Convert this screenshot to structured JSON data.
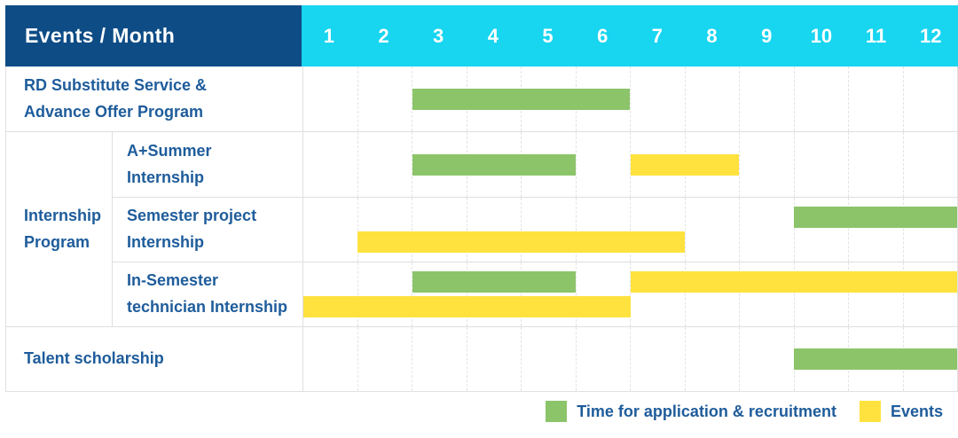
{
  "header": {
    "title": "Events / Month"
  },
  "colors": {
    "navy_header": "#0E4C86",
    "cyan_header": "#18D5F0",
    "label_blue": "#1E5C9B",
    "green": "#8CC46A",
    "yellow": "#FFE23E",
    "grid_line": "#DFDFDF"
  },
  "chart_data": {
    "type": "gantt",
    "title": "Events / Month",
    "x_axis_label": "Month",
    "months": [
      "1",
      "2",
      "3",
      "4",
      "5",
      "6",
      "7",
      "8",
      "9",
      "10",
      "11",
      "12"
    ],
    "x_range": [
      1,
      12
    ],
    "grid": "on",
    "legend_position": "bottom-right",
    "group_label_lines": [
      "Internship",
      "Program"
    ],
    "group_label": "Internship Program",
    "rows": [
      {
        "label": "RD Substitute Service & Advance Offer Program",
        "lines": [
          "RD Substitute Service &",
          "Advance Offer Program"
        ],
        "group": null,
        "bars": [
          {
            "color": "green",
            "meaning": "Time for application & recruitment",
            "start_month": 3,
            "end_month": 6,
            "lane": "center"
          }
        ]
      },
      {
        "label": "A+Summer Internship",
        "lines": [
          "A+Summer",
          "Internship"
        ],
        "group": "Internship Program",
        "bars": [
          {
            "color": "green",
            "meaning": "Time for application & recruitment",
            "start_month": 3,
            "end_month": 5,
            "lane": "center"
          },
          {
            "color": "yellow",
            "meaning": "Events",
            "start_month": 7,
            "end_month": 8,
            "lane": "center"
          }
        ]
      },
      {
        "label": "Semester project Internship",
        "lines": [
          "Semester project",
          "Internship"
        ],
        "group": "Internship Program",
        "bars": [
          {
            "color": "green",
            "meaning": "Time for application & recruitment",
            "start_month": 10,
            "end_month": 12,
            "lane": "top"
          },
          {
            "color": "yellow",
            "meaning": "Events",
            "start_month": 2,
            "end_month": 7,
            "lane": "bottom"
          }
        ]
      },
      {
        "label": "In-Semester technician Internship",
        "lines": [
          "In-Semester",
          "technician Internship"
        ],
        "group": "Internship Program",
        "bars": [
          {
            "color": "green",
            "meaning": "Time for application & recruitment",
            "start_month": 3,
            "end_month": 5,
            "lane": "top"
          },
          {
            "color": "yellow",
            "meaning": "Events",
            "start_month": 7,
            "end_month": 12,
            "lane": "top"
          },
          {
            "color": "yellow",
            "meaning": "Events",
            "start_month": 1,
            "end_month": 6,
            "lane": "bottom"
          }
        ]
      },
      {
        "label": "Talent scholarship",
        "lines": [
          "Talent scholarship"
        ],
        "group": null,
        "bars": [
          {
            "color": "green",
            "meaning": "Time for application & recruitment",
            "start_month": 10,
            "end_month": 12,
            "lane": "center"
          }
        ]
      }
    ],
    "legend": [
      {
        "color": "green",
        "label": "Time for application & recruitment"
      },
      {
        "color": "yellow",
        "label": "Events"
      }
    ]
  }
}
